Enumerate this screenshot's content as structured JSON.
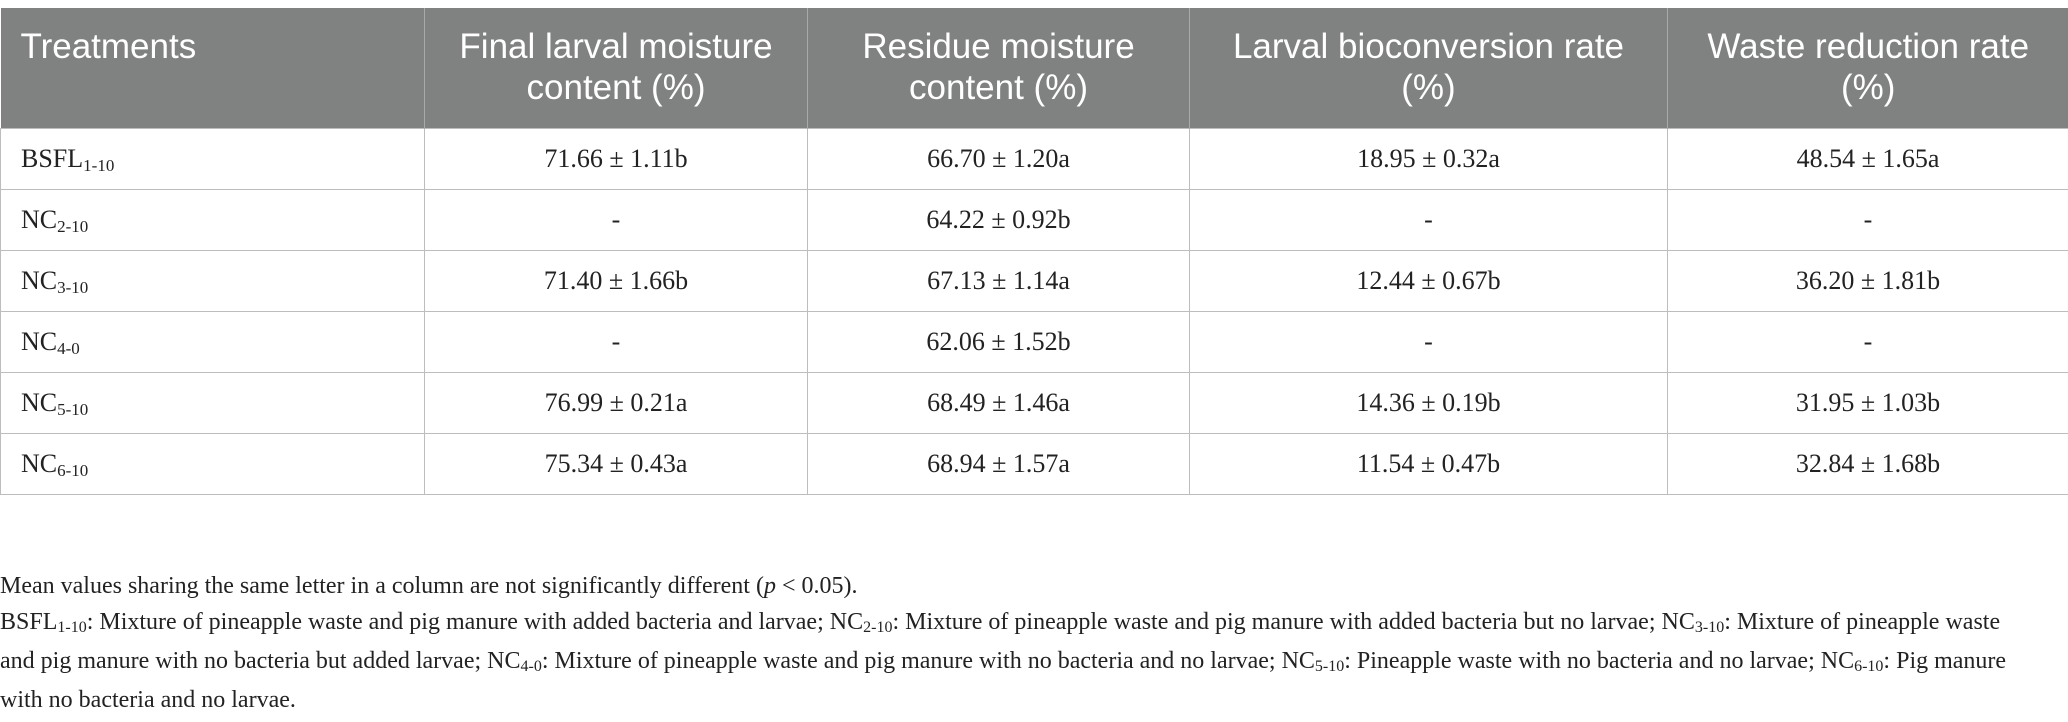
{
  "table": {
    "headers": [
      "Treatments",
      "Final larval moisture content (%)",
      "Residue moisture content (%)",
      "Larval bioconversion rate (%)",
      "Waste reduction rate (%)"
    ],
    "rows": [
      {
        "treatment": "BSFL",
        "sub": "1-10",
        "final_moisture": "71.66 ± 1.11b",
        "residue_moisture": "66.70 ± 1.20a",
        "bioconversion": "18.95 ± 0.32a",
        "waste_reduction": "48.54 ± 1.65a"
      },
      {
        "treatment": "NC",
        "sub": "2-10",
        "final_moisture": "-",
        "residue_moisture": "64.22 ± 0.92b",
        "bioconversion": "-",
        "waste_reduction": "-"
      },
      {
        "treatment": "NC",
        "sub": "3-10",
        "final_moisture": "71.40 ± 1.66b",
        "residue_moisture": "67.13 ± 1.14a",
        "bioconversion": "12.44 ± 0.67b",
        "waste_reduction": "36.20 ± 1.81b"
      },
      {
        "treatment": "NC",
        "sub": "4-0",
        "final_moisture": "-",
        "residue_moisture": "62.06 ± 1.52b",
        "bioconversion": "-",
        "waste_reduction": "-"
      },
      {
        "treatment": "NC",
        "sub": "5-10",
        "final_moisture": "76.99 ± 0.21a",
        "residue_moisture": "68.49 ± 1.46a",
        "bioconversion": "14.36 ± 0.19b",
        "waste_reduction": "31.95 ± 1.03b"
      },
      {
        "treatment": "NC",
        "sub": "6-10",
        "final_moisture": "75.34 ± 0.43a",
        "residue_moisture": "68.94 ± 1.57a",
        "bioconversion": "11.54 ± 0.47b",
        "waste_reduction": "32.84 ± 1.68b"
      }
    ]
  },
  "notes": {
    "significance": {
      "before": "Mean values sharing the same letter in a column are not significantly different (",
      "p": "p",
      "after": " < 0.05)."
    },
    "legend": [
      {
        "label": "BSFL",
        "sub": "1-10",
        "text": ": Mixture of pineapple waste and pig manure with added bacteria and larvae; "
      },
      {
        "label": "NC",
        "sub": "2-10",
        "text": ": Mixture of pineapple waste and pig manure with added bacteria but no larvae; "
      },
      {
        "label": "NC",
        "sub": "3-10",
        "text": ": Mixture of pineapple waste and pig manure with no bacteria but added larvae; "
      },
      {
        "label": "NC",
        "sub": "4-0",
        "text": ": Mixture of pineapple waste and pig manure with no bacteria and no larvae; "
      },
      {
        "label": "NC",
        "sub": "5-10",
        "text": ": Pineapple waste with no bacteria and no larvae; "
      },
      {
        "label": "NC",
        "sub": "6-10",
        "text": ": Pig manure with no bacteria and no larvae."
      }
    ]
  }
}
